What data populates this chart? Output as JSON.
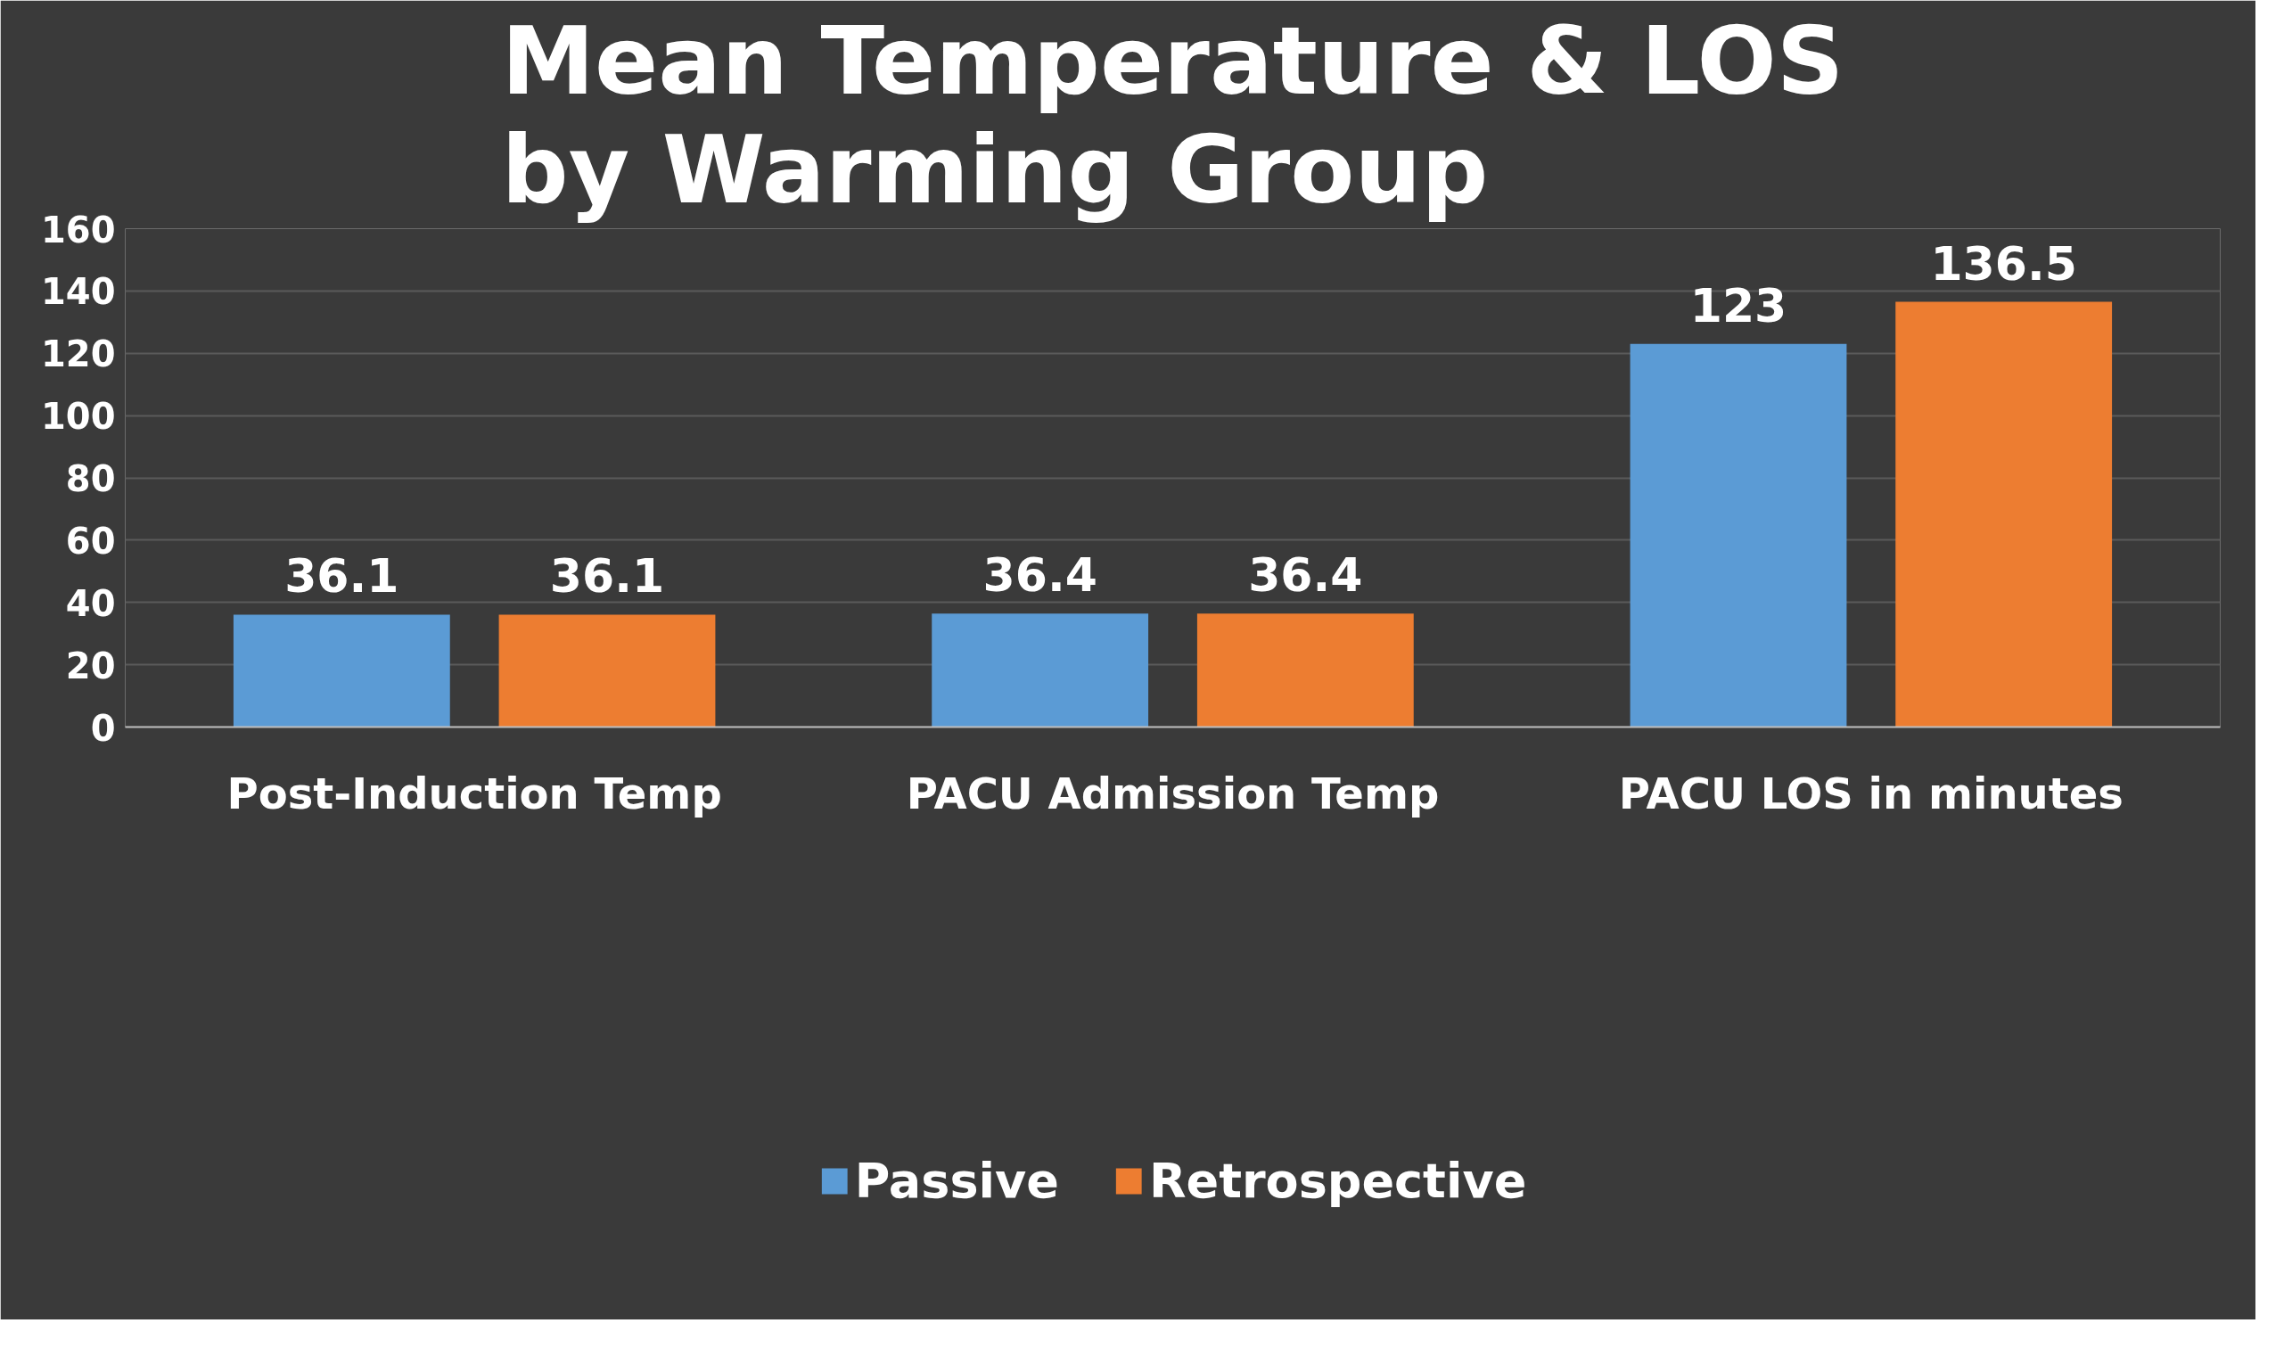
{
  "chart_data": {
    "type": "bar",
    "title": "Mean Temperature & LOS\nby Warming Group",
    "categories": [
      "Post-Induction Temp",
      "PACU Admission Temp",
      "PACU LOS in minutes"
    ],
    "series": [
      {
        "name": "Passive",
        "color": "#5b9bd5",
        "values": [
          36.1,
          36.4,
          123
        ]
      },
      {
        "name": "Retrospective",
        "color": "#ed7d31",
        "values": [
          36.1,
          36.4,
          136.5
        ]
      }
    ],
    "ylim": [
      0,
      160
    ],
    "yticks": [
      0,
      20,
      40,
      60,
      80,
      100,
      120,
      140,
      160
    ],
    "grid": "y",
    "legend": "bottom",
    "data_labels": true
  }
}
